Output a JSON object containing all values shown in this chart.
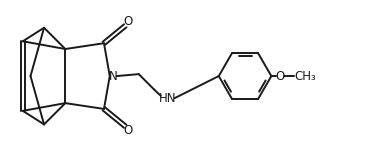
{
  "bg_color": "#ffffff",
  "line_color": "#1a1a1a",
  "line_width": 1.4,
  "font_size": 8.5,
  "figsize": [
    3.78,
    1.56
  ],
  "dpi": 100,
  "xlim": [
    0,
    9.5
  ],
  "ylim": [
    0,
    4.0
  ]
}
